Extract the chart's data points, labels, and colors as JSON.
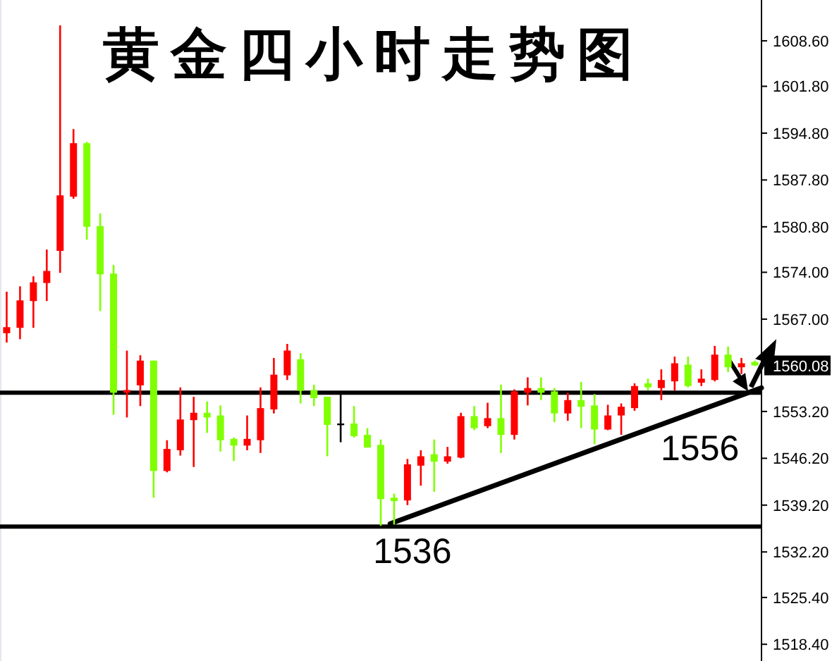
{
  "chart_data": {
    "type": "candlestick",
    "title": "黄金四小时走势图",
    "categories": [
      null,
      null,
      null,
      null,
      null,
      null,
      null,
      null,
      null,
      null,
      null,
      null,
      null,
      null,
      null,
      null,
      null,
      null,
      null,
      null,
      null,
      null,
      null,
      null,
      null,
      null,
      null,
      null,
      null,
      null,
      null,
      null,
      null,
      null,
      null,
      null,
      null,
      null,
      null,
      null,
      null,
      null,
      null,
      null,
      null,
      null,
      null,
      null,
      null,
      null,
      null,
      null,
      null,
      null,
      null,
      null,
      null
    ],
    "ohlc": [
      [
        1564.9,
        1571.1,
        1563.5,
        1565.8
      ],
      [
        1565.7,
        1571.9,
        1564.0,
        1569.8
      ],
      [
        1569.7,
        1573.4,
        1565.7,
        1572.5
      ],
      [
        1572.4,
        1577.4,
        1569.7,
        1574.2
      ],
      [
        1577.2,
        1610.9,
        1573.9,
        1585.5
      ],
      [
        1585.3,
        1595.4,
        1585.0,
        1593.3
      ],
      [
        1593.3,
        1593.5,
        1578.9,
        1580.8
      ],
      [
        1580.9,
        1582.8,
        1568.2,
        1573.7
      ],
      [
        1573.8,
        1575.1,
        1552.7,
        1556.0
      ],
      [
        1556.0,
        1562.3,
        1552.3,
        1556.4
      ],
      [
        1557.1,
        1561.6,
        1554.0,
        1560.8
      ],
      [
        1560.8,
        1560.8,
        1540.3,
        1544.3
      ],
      [
        1544.3,
        1548.9,
        1544.1,
        1547.6
      ],
      [
        1547.4,
        1556.8,
        1546.6,
        1552.0
      ],
      [
        1551.9,
        1555.4,
        1544.9,
        1553.0
      ],
      [
        1553.0,
        1554.7,
        1550.0,
        1552.3
      ],
      [
        1552.6,
        1554.1,
        1547.2,
        1548.9
      ],
      [
        1549.1,
        1549.3,
        1545.8,
        1548.1
      ],
      [
        1548.1,
        1552.6,
        1547.4,
        1549.1
      ],
      [
        1548.9,
        1556.8,
        1547.0,
        1553.7
      ],
      [
        1553.5,
        1561.2,
        1552.9,
        1558.7
      ],
      [
        1558.6,
        1563.3,
        1557.9,
        1562.3
      ],
      [
        1561.0,
        1561.9,
        1554.4,
        1556.3
      ],
      [
        1556.4,
        1557.2,
        1554.0,
        1555.2
      ],
      [
        1555.4,
        1555.4,
        1546.5,
        1551.2
      ],
      [
        1551.4,
        1556.2,
        1548.6,
        1551.4
      ],
      [
        1551.4,
        1554.0,
        1549.3,
        1549.5
      ],
      [
        1549.7,
        1550.7,
        1547.8,
        1547.8
      ],
      [
        1548.2,
        1549.0,
        1536.1,
        1540.1
      ],
      [
        1540.3,
        1540.9,
        1536.3,
        1539.8
      ],
      [
        1539.9,
        1546.1,
        1539.2,
        1545.3
      ],
      [
        1545.1,
        1547.4,
        1542.1,
        1546.5
      ],
      [
        1546.8,
        1549.0,
        1541.2,
        1545.7
      ],
      [
        1545.7,
        1547.9,
        1545.4,
        1546.5
      ],
      [
        1546.3,
        1553.0,
        1546.2,
        1552.5
      ],
      [
        1552.5,
        1554.0,
        1550.4,
        1550.7
      ],
      [
        1551.0,
        1554.5,
        1550.7,
        1552.2
      ],
      [
        1552.2,
        1557.2,
        1547.0,
        1549.7
      ],
      [
        1549.7,
        1556.5,
        1549.0,
        1556.2
      ],
      [
        1556.0,
        1558.3,
        1554.1,
        1556.7
      ],
      [
        1556.7,
        1558.3,
        1554.9,
        1556.0
      ],
      [
        1556.2,
        1556.7,
        1551.6,
        1552.9
      ],
      [
        1552.9,
        1556.0,
        1551.8,
        1554.9
      ],
      [
        1554.9,
        1557.6,
        1550.7,
        1553.9
      ],
      [
        1554.1,
        1555.8,
        1548.3,
        1550.5
      ],
      [
        1550.5,
        1554.2,
        1550.4,
        1552.6
      ],
      [
        1552.6,
        1554.4,
        1549.7,
        1553.9
      ],
      [
        1553.7,
        1557.4,
        1553.3,
        1557.0
      ],
      [
        1557.4,
        1558.1,
        1556.4,
        1556.8
      ],
      [
        1556.7,
        1559.5,
        1554.9,
        1557.9
      ],
      [
        1557.7,
        1561.4,
        1556.3,
        1560.4
      ],
      [
        1560.2,
        1561.4,
        1556.8,
        1557.0
      ],
      [
        1557.5,
        1559.5,
        1557.0,
        1558.1
      ],
      [
        1557.9,
        1563.0,
        1557.7,
        1561.7
      ],
      [
        1561.7,
        1562.9,
        1559.1,
        1559.8
      ],
      [
        1559.8,
        1561.2,
        1558.8,
        1560.4
      ],
      [
        1560.6,
        1560.8,
        1560.0,
        1560.08
      ]
    ],
    "colors": [
      "#ff0000",
      "#ff0000",
      "#ff0000",
      "#ff0000",
      "#ff0000",
      "#ff0000",
      "#80ff00",
      "#80ff00",
      "#80ff00",
      "#ff0000",
      "#ff0000",
      "#80ff00",
      "#ff0000",
      "#ff0000",
      "#ff0000",
      "#80ff00",
      "#80ff00",
      "#80ff00",
      "#ff0000",
      "#ff0000",
      "#ff0000",
      "#ff0000",
      "#80ff00",
      "#80ff00",
      "#80ff00",
      "#000000",
      "#80ff00",
      "#80ff00",
      "#80ff00",
      "#80ff00",
      "#ff0000",
      "#ff0000",
      "#80ff00",
      "#ff0000",
      "#ff0000",
      "#80ff00",
      "#ff0000",
      "#80ff00",
      "#ff0000",
      "#ff0000",
      "#80ff00",
      "#80ff00",
      "#ff0000",
      "#80ff00",
      "#80ff00",
      "#ff0000",
      "#ff0000",
      "#ff0000",
      "#80ff00",
      "#ff0000",
      "#ff0000",
      "#80ff00",
      "#ff0000",
      "#ff0000",
      "#80ff00",
      "#ff0000",
      "#80ff00"
    ],
    "ref_lines": [
      {
        "axis": "y",
        "value": 1536,
        "label": "1536",
        "color": "#000000"
      },
      {
        "axis": "y",
        "value": 1556,
        "label": "1556",
        "color": "#000000"
      }
    ],
    "ylim": [
      1515.9,
      1614.7
    ],
    "yticks": [
      {
        "value": 1608.6,
        "label": "1608.60"
      },
      {
        "value": 1601.8,
        "label": "1601.80"
      },
      {
        "value": 1594.8,
        "label": "1594.80"
      },
      {
        "value": 1587.8,
        "label": "1587.80"
      },
      {
        "value": 1580.8,
        "label": "1580.80"
      },
      {
        "value": 1574,
        "label": "1574.00"
      },
      {
        "value": 1567,
        "label": "1567.00"
      },
      {
        "value": 1560.08,
        "label": "1560.08"
      },
      {
        "value": 1553.2,
        "label": "1553.20"
      },
      {
        "value": 1546.2,
        "label": "1546.20"
      },
      {
        "value": 1539.2,
        "label": "1539.20"
      },
      {
        "value": 1532.2,
        "label": "1532.20"
      },
      {
        "value": 1525.4,
        "label": "1525.40"
      },
      {
        "value": 1518.4,
        "label": "1518.40"
      }
    ],
    "tick_labels": "y"
  }
}
